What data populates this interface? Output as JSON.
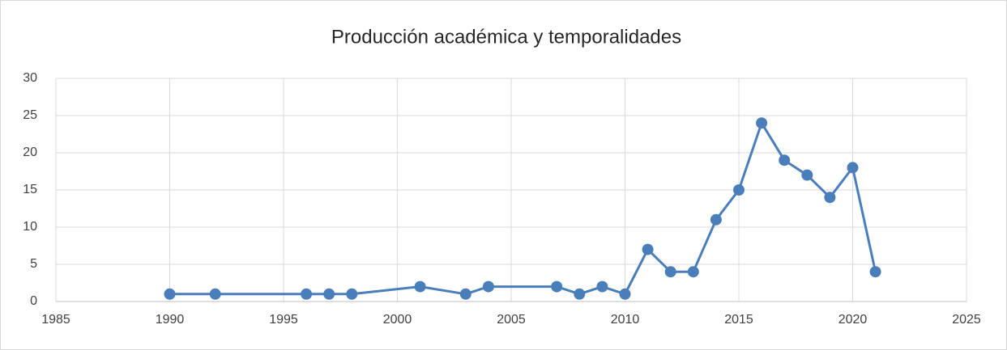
{
  "chart_data": {
    "type": "line",
    "title": "Producción académica y temporalidades",
    "x": [
      1990,
      1992,
      1996,
      1997,
      1998,
      2001,
      2003,
      2004,
      2007,
      2008,
      2009,
      2010,
      2011,
      2012,
      2013,
      2014,
      2015,
      2016,
      2017,
      2018,
      2019,
      2020,
      2021
    ],
    "values": [
      1,
      1,
      1,
      1,
      1,
      2,
      1,
      2,
      2,
      1,
      2,
      1,
      7,
      4,
      4,
      11,
      15,
      24,
      19,
      17,
      14,
      18,
      4
    ],
    "color": "#4a7ebb",
    "xlim": [
      1985,
      2025
    ],
    "xticks": [
      1985,
      1990,
      1995,
      2000,
      2005,
      2010,
      2015,
      2020,
      2025
    ],
    "ylim": [
      0,
      30
    ],
    "yticks": [
      0,
      5,
      10,
      15,
      20,
      25,
      30
    ],
    "grid": true
  }
}
